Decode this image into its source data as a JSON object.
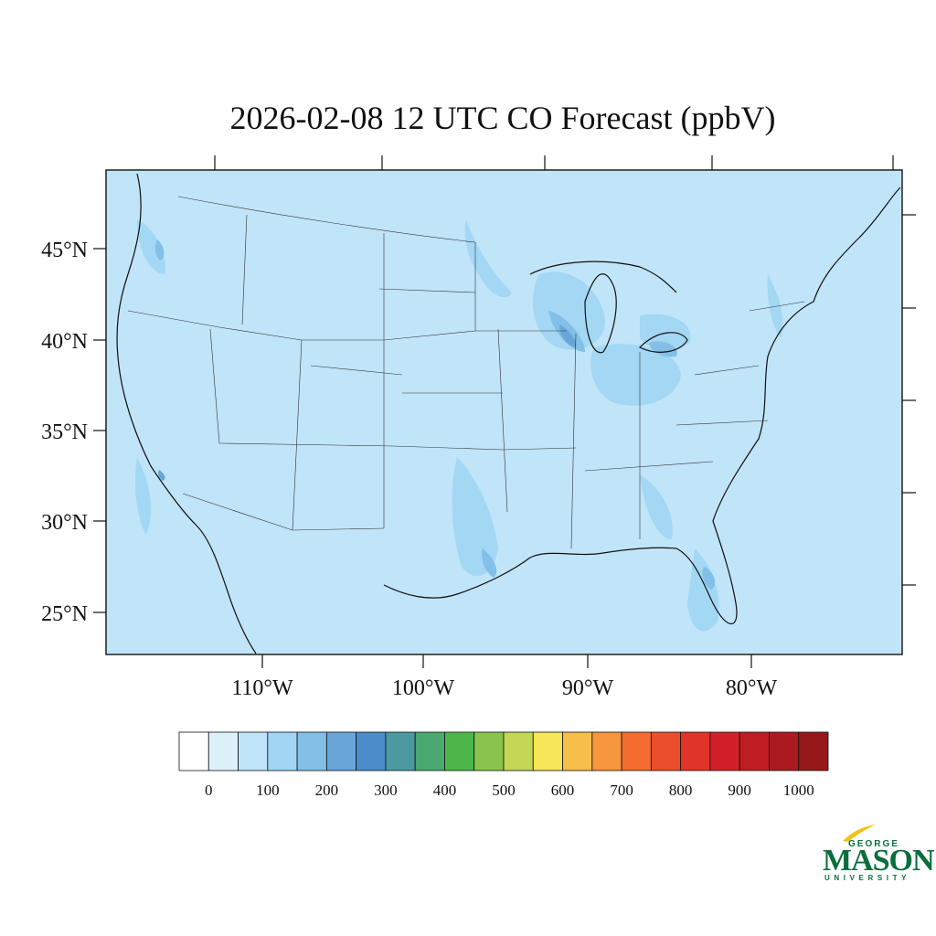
{
  "title": "2026-02-08 12 UTC CO Forecast (ppbV)",
  "map": {
    "background_color": "#c0e4f8",
    "latitude_labels": [
      "45°N",
      "40°N",
      "35°N",
      "30°N",
      "25°N"
    ],
    "longitude_labels": [
      "110°W",
      "100°W",
      "90°W",
      "80°W"
    ]
  },
  "colorbar": {
    "labels": [
      "0",
      "100",
      "200",
      "300",
      "400",
      "500",
      "600",
      "700",
      "800",
      "900",
      "1000"
    ],
    "colors": [
      "#ffffff",
      "#ddf1fb",
      "#c0e4f8",
      "#a0d6f3",
      "#83bfe6",
      "#68a6da",
      "#4b8cca",
      "#4a9aa0",
      "#4aa870",
      "#4cb64a",
      "#88c44e",
      "#c4d656",
      "#f6e65a",
      "#f6be4a",
      "#f6963e",
      "#f46c30",
      "#ea4e2c",
      "#e03428",
      "#d22028",
      "#c01c24",
      "#aa1a20",
      "#961818"
    ]
  },
  "logo": {
    "line1": "GEORGE",
    "line2": "MASON",
    "line3": "UNIVERSITY",
    "brand_color": "#0b6e3c",
    "accent_color": "#f2c316"
  }
}
